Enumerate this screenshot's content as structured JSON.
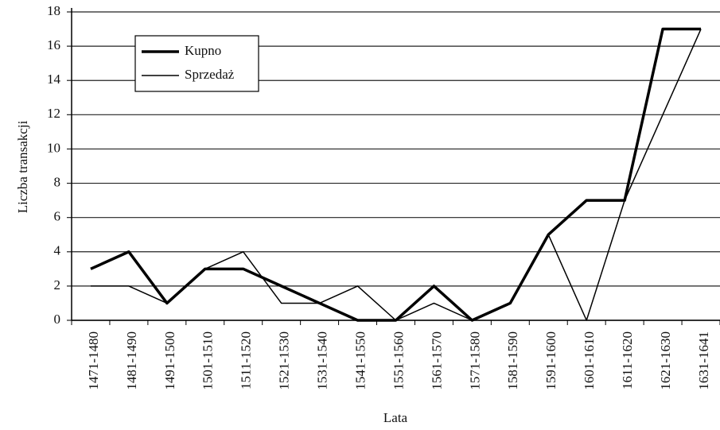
{
  "chart_data": {
    "type": "line",
    "x_label": "Lata",
    "y_label": "Liczba transakcji",
    "categories": [
      "1471-1480",
      "1481-1490",
      "1491-1500",
      "1501-1510",
      "1511-1520",
      "1521-1530",
      "1531-1540",
      "1541-1550",
      "1551-1560",
      "1561-1570",
      "1571-1580",
      "1581-1590",
      "1591-1600",
      "1601-1610",
      "1611-1620",
      "1621-1630",
      "1631-1641"
    ],
    "series": [
      {
        "name": "Kupno",
        "color": "#000000",
        "values": [
          3,
          4,
          1,
          3,
          3,
          2,
          1,
          0,
          0,
          2,
          0,
          1,
          5,
          7,
          7,
          17,
          17
        ]
      },
      {
        "name": "Sprzedaż",
        "color": "#000000",
        "values": [
          2,
          2,
          1,
          3,
          4,
          1,
          1,
          2,
          0,
          1,
          0,
          1,
          5,
          0,
          7,
          12,
          17
        ]
      }
    ],
    "ylim": [
      0,
      18
    ],
    "yticks": [
      0,
      2,
      4,
      6,
      8,
      10,
      12,
      14,
      16,
      18
    ],
    "grid": true,
    "legend": "upper left"
  }
}
